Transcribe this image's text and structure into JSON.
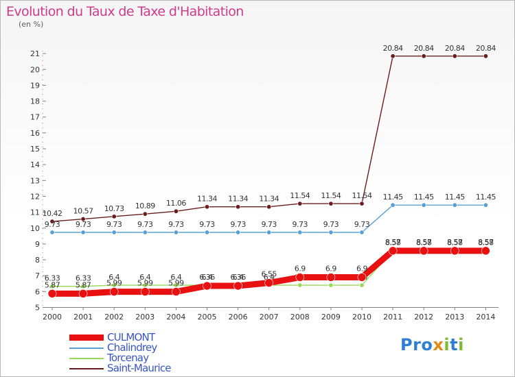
{
  "title": "Evolution du Taux de Taxe d'Habitation",
  "unit": "(en %)",
  "logo": "Proxiti",
  "chart_data": {
    "type": "line",
    "title": "Evolution du Taux de Taxe d'Habitation",
    "ylabel": "(en %)",
    "xlabel": "",
    "ylim": [
      5,
      21
    ],
    "yticks": [
      5,
      6,
      7,
      8,
      9,
      10,
      11,
      12,
      13,
      14,
      15,
      16,
      17,
      18,
      19,
      20,
      21
    ],
    "x": [
      "2000",
      "2001",
      "2002",
      "2003",
      "2004",
      "2005",
      "2006",
      "2007",
      "2008",
      "2009",
      "2010",
      "2011",
      "2012",
      "2013",
      "2014"
    ],
    "grid": false,
    "legend_position": "bottom-left",
    "series": [
      {
        "name": "Saint-Maurice",
        "color": "#6b1d1d",
        "values": [
          10.42,
          10.57,
          10.73,
          10.89,
          11.06,
          11.34,
          11.34,
          11.34,
          11.54,
          11.54,
          11.54,
          20.84,
          20.84,
          20.84,
          20.84
        ],
        "labels": [
          "10.42",
          "10.57",
          "10.73",
          "10.89",
          "11.06",
          "11.34",
          "11.34",
          "11.34",
          "11.54",
          "11.54",
          "11.54",
          "20.84",
          "20.84",
          "20.84",
          "20.84"
        ]
      },
      {
        "name": "Chalindrey",
        "color": "#5a9fd4",
        "values": [
          9.73,
          9.73,
          9.73,
          9.73,
          9.73,
          9.73,
          9.73,
          9.73,
          9.73,
          9.73,
          9.73,
          11.45,
          11.45,
          11.45,
          11.45
        ],
        "labels": [
          "9.73",
          "9.73",
          "9.73",
          "9.73",
          "9.73",
          "9.73",
          "9.73",
          "9.73",
          "9.73",
          "9.73",
          "9.73",
          "11.45",
          "11.45",
          "11.45",
          "11.45"
        ]
      },
      {
        "name": "Torcenay",
        "color": "#9ad85a",
        "values": [
          6.33,
          6.33,
          6.4,
          6.4,
          6.4,
          6.4,
          6.4,
          6.4,
          6.4,
          6.4,
          6.4,
          8.58,
          8.58,
          8.58,
          8.58
        ],
        "labels": [
          "6.33",
          "6.33",
          "6.4",
          "6.4",
          "6.4",
          "6.4",
          "6.4",
          "6.4",
          "6.4",
          "6.4",
          "6.4",
          "8.58",
          "8.58",
          "8.58",
          "8.58"
        ]
      },
      {
        "name": "CULMONT",
        "color": "#e81010",
        "values": [
          5.87,
          5.87,
          5.99,
          5.99,
          5.99,
          6.36,
          6.36,
          6.55,
          6.9,
          6.9,
          6.9,
          8.57,
          8.57,
          8.57,
          8.57
        ],
        "labels": [
          "5.87",
          "5.87",
          "5.99",
          "5.99",
          "5.99",
          "6.36",
          "6.36",
          "6.55",
          "6.9",
          "6.9",
          "6.9",
          "8.57",
          "8.57",
          "8.57",
          "8.57"
        ]
      }
    ],
    "legend_order": [
      "CULMONT",
      "Chalindrey",
      "Torcenay",
      "Saint-Maurice"
    ]
  }
}
